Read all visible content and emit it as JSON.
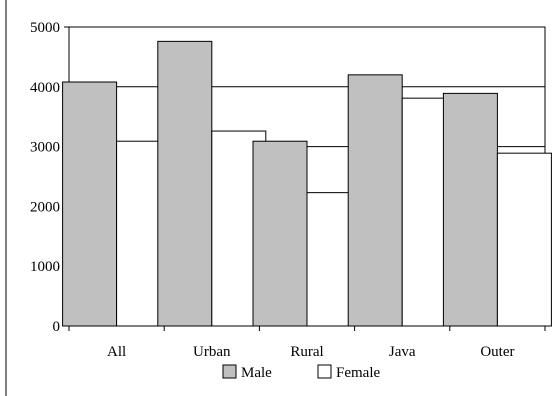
{
  "chart_data": {
    "type": "bar",
    "categories": [
      "All",
      "Urban",
      "Rural",
      "Java",
      "Outer"
    ],
    "series": [
      {
        "name": "Male",
        "values": [
          4080,
          4760,
          3090,
          4200,
          3890
        ],
        "color": "#c0c0c0"
      },
      {
        "name": "Female",
        "values": [
          3090,
          3260,
          2230,
          3810,
          2890
        ],
        "color": "#ffffff"
      }
    ],
    "ylim": [
      0,
      5000
    ],
    "yticks": [
      0,
      1000,
      2000,
      3000,
      4000,
      5000
    ],
    "grid": true,
    "legend_position": "bottom",
    "title": "",
    "xlabel": "",
    "ylabel": ""
  }
}
